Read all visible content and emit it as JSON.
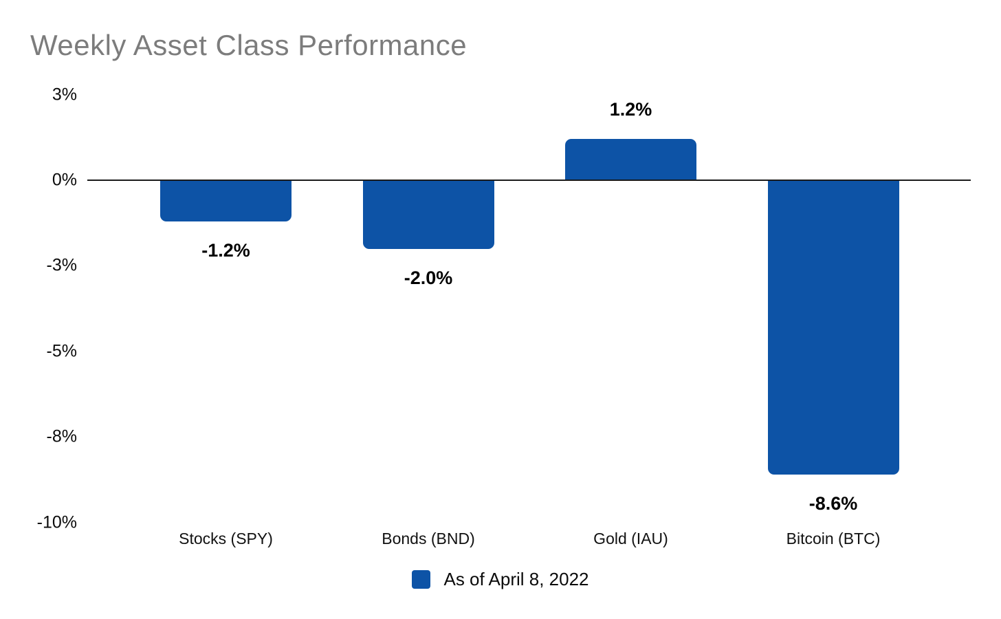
{
  "chart_data": {
    "type": "bar",
    "title": "Weekly Asset Class Performance",
    "categories": [
      "Stocks (SPY)",
      "Bonds (BND)",
      "Gold (IAU)",
      "Bitcoin (BTC)"
    ],
    "values": [
      -1.2,
      -2.0,
      1.2,
      -8.6
    ],
    "value_labels": [
      "-1.2%",
      "-2.0%",
      "1.2%",
      "-8.6%"
    ],
    "xlabel": "",
    "ylabel": "",
    "ylim": [
      -10,
      2.5
    ],
    "yticks": [
      {
        "value": 2.5,
        "label": "3%"
      },
      {
        "value": 0,
        "label": "0%"
      },
      {
        "value": -2.5,
        "label": "-3%"
      },
      {
        "value": -5,
        "label": "-5%"
      },
      {
        "value": -7.5,
        "label": "-8%"
      },
      {
        "value": -10,
        "label": "-10%"
      }
    ],
    "grid": false,
    "legend": {
      "label": "As of April 8, 2022",
      "position": "bottom-center"
    },
    "colors": {
      "bar": "#0d53a6",
      "title": "#7c7c7c",
      "axis_line": "#1a1a1a",
      "text": "#0b0b0b"
    }
  }
}
